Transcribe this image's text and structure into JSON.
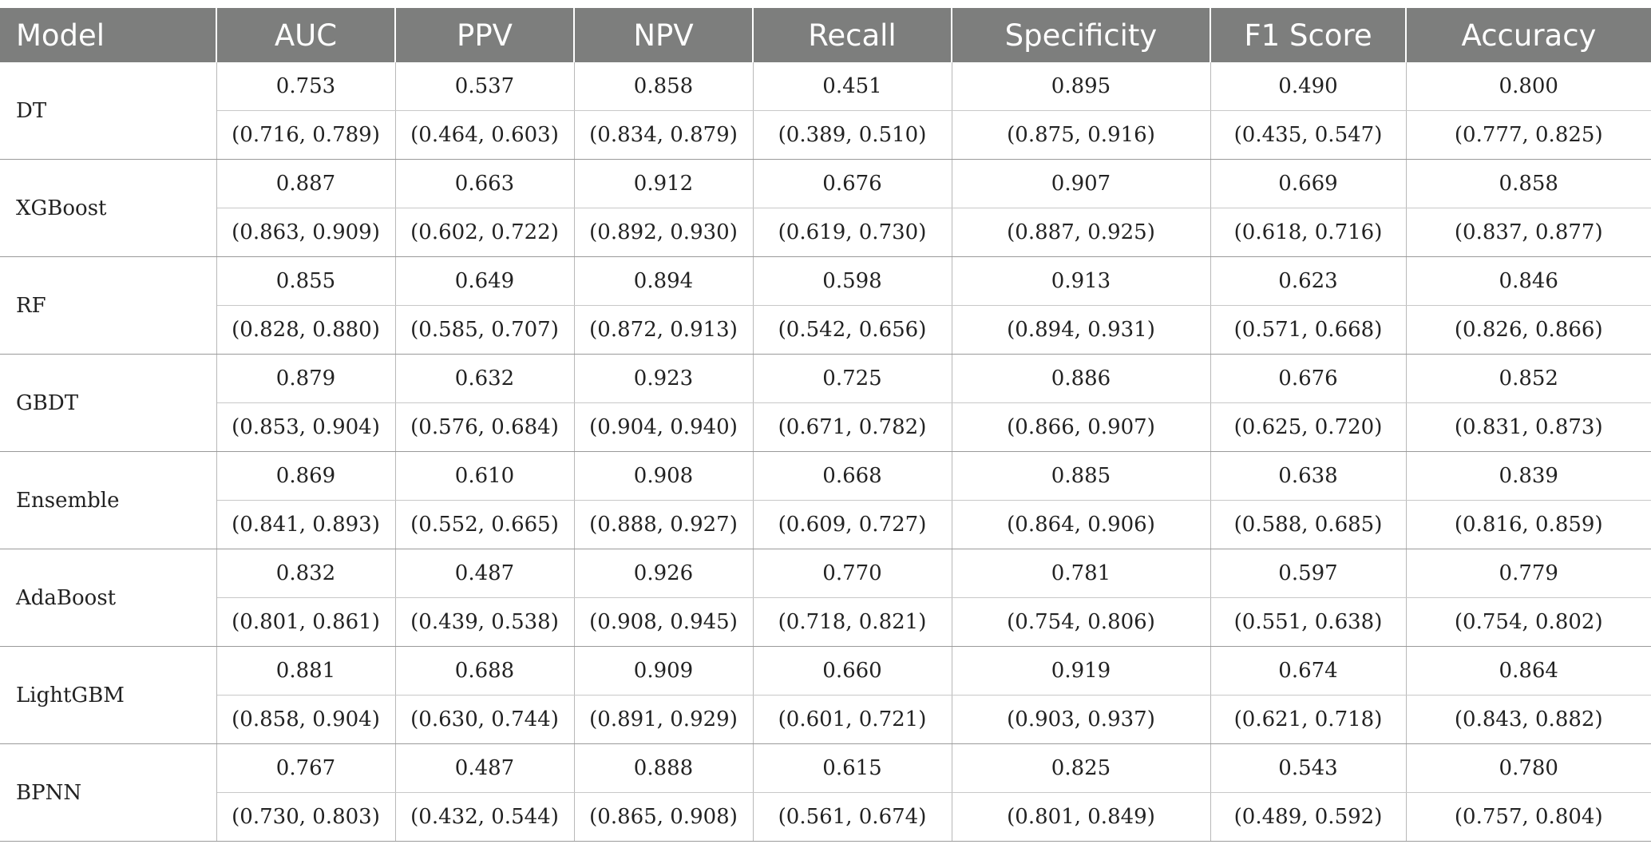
{
  "headers": [
    "Model",
    "AUC",
    "PPV",
    "NPV",
    "Recall",
    "Specificity",
    "F1 Score",
    "Accuracy"
  ],
  "rows": [
    {
      "model": "DT",
      "values": [
        "0.753",
        "0.537",
        "0.858",
        "0.451",
        "0.895",
        "0.490",
        "0.800"
      ],
      "ci": [
        "(0.716, 0.789)",
        "(0.464, 0.603)",
        "(0.834, 0.879)",
        "(0.389, 0.510)",
        "(0.875, 0.916)",
        "(0.435, 0.547)",
        "(0.777, 0.825)"
      ]
    },
    {
      "model": "XGBoost",
      "values": [
        "0.887",
        "0.663",
        "0.912",
        "0.676",
        "0.907",
        "0.669",
        "0.858"
      ],
      "ci": [
        "(0.863, 0.909)",
        "(0.602, 0.722)",
        "(0.892, 0.930)",
        "(0.619, 0.730)",
        "(0.887, 0.925)",
        "(0.618, 0.716)",
        "(0.837, 0.877)"
      ]
    },
    {
      "model": "RF",
      "values": [
        "0.855",
        "0.649",
        "0.894",
        "0.598",
        "0.913",
        "0.623",
        "0.846"
      ],
      "ci": [
        "(0.828, 0.880)",
        "(0.585, 0.707)",
        "(0.872, 0.913)",
        "(0.542, 0.656)",
        "(0.894, 0.931)",
        "(0.571, 0.668)",
        "(0.826, 0.866)"
      ]
    },
    {
      "model": "GBDT",
      "values": [
        "0.879",
        "0.632",
        "0.923",
        "0.725",
        "0.886",
        "0.676",
        "0.852"
      ],
      "ci": [
        "(0.853, 0.904)",
        "(0.576, 0.684)",
        "(0.904, 0.940)",
        "(0.671, 0.782)",
        "(0.866, 0.907)",
        "(0.625, 0.720)",
        "(0.831, 0.873)"
      ]
    },
    {
      "model": "Ensemble",
      "values": [
        "0.869",
        "0.610",
        "0.908",
        "0.668",
        "0.885",
        "0.638",
        "0.839"
      ],
      "ci": [
        "(0.841, 0.893)",
        "(0.552, 0.665)",
        "(0.888, 0.927)",
        "(0.609, 0.727)",
        "(0.864, 0.906)",
        "(0.588, 0.685)",
        "(0.816, 0.859)"
      ]
    },
    {
      "model": "AdaBoost",
      "values": [
        "0.832",
        "0.487",
        "0.926",
        "0.770",
        "0.781",
        "0.597",
        "0.779"
      ],
      "ci": [
        "(0.801, 0.861)",
        "(0.439, 0.538)",
        "(0.908, 0.945)",
        "(0.718, 0.821)",
        "(0.754, 0.806)",
        "(0.551, 0.638)",
        "(0.754, 0.802)"
      ]
    },
    {
      "model": "LightGBM",
      "values": [
        "0.881",
        "0.688",
        "0.909",
        "0.660",
        "0.919",
        "0.674",
        "0.864"
      ],
      "ci": [
        "(0.858, 0.904)",
        "(0.630, 0.744)",
        "(0.891, 0.929)",
        "(0.601, 0.721)",
        "(0.903, 0.937)",
        "(0.621, 0.718)",
        "(0.843, 0.882)"
      ]
    },
    {
      "model": "BPNN",
      "values": [
        "0.767",
        "0.487",
        "0.888",
        "0.615",
        "0.825",
        "0.543",
        "0.780"
      ],
      "ci": [
        "(0.730, 0.803)",
        "(0.432, 0.544)",
        "(0.865, 0.908)",
        "(0.561, 0.674)",
        "(0.801, 0.849)",
        "(0.489, 0.592)",
        "(0.757, 0.804)"
      ]
    }
  ]
}
